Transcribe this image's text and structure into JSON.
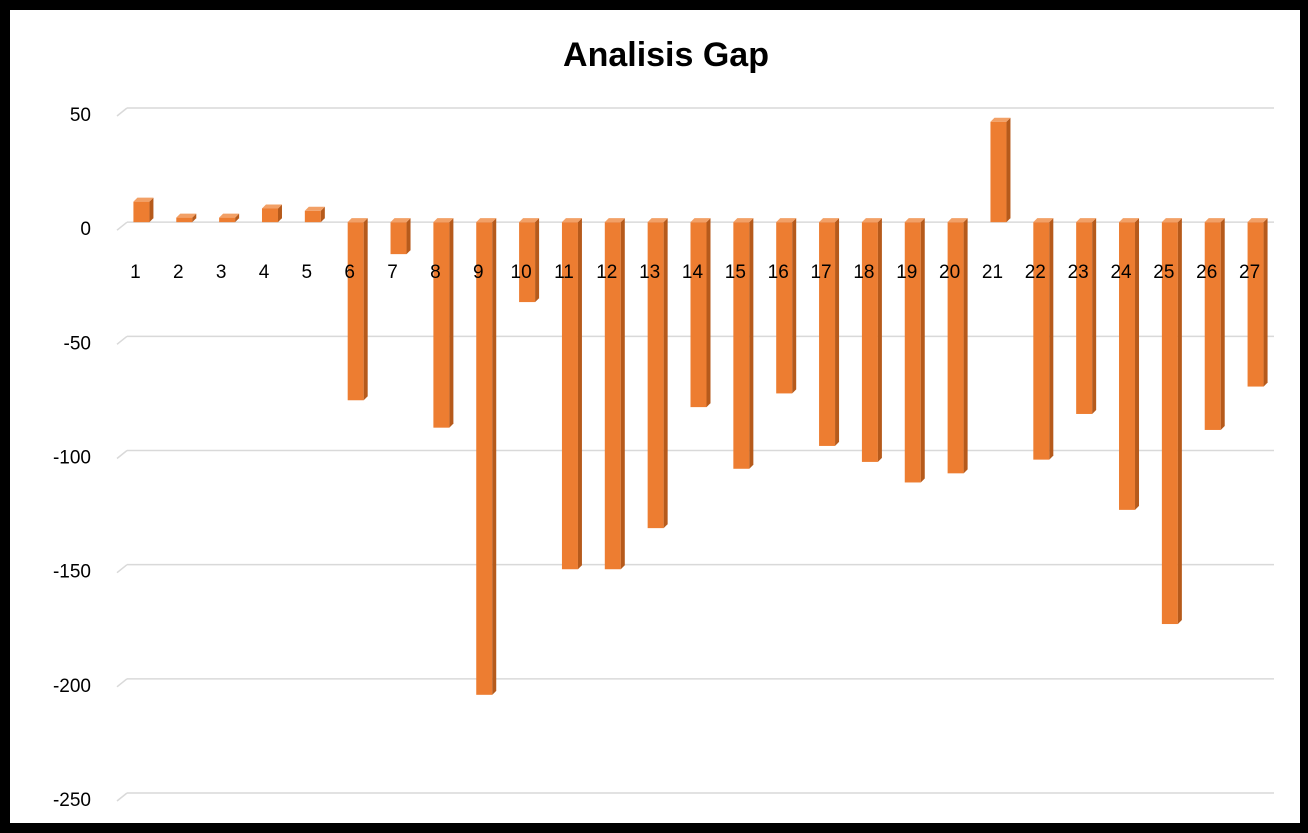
{
  "chart_data": {
    "type": "bar",
    "title": "Analisis Gap",
    "xlabel": "",
    "ylabel": "",
    "categories": [
      "1",
      "2",
      "3",
      "4",
      "5",
      "6",
      "7",
      "8",
      "9",
      "10",
      "11",
      "12",
      "13",
      "14",
      "15",
      "16",
      "17",
      "18",
      "19",
      "20",
      "21",
      "22",
      "23",
      "24",
      "25",
      "26",
      "27"
    ],
    "values": [
      9,
      2,
      2,
      6,
      5,
      -78,
      -14,
      -90,
      -207,
      -35,
      -152,
      -152,
      -134,
      -81,
      -108,
      -75,
      -98,
      -105,
      -114,
      -110,
      44,
      -104,
      -84,
      -126,
      -176,
      -91,
      -72
    ],
    "ylim": [
      -250,
      50
    ],
    "yticks": [
      50,
      0,
      -50,
      -100,
      -150,
      -200,
      -250
    ],
    "grid": true,
    "legend": "none",
    "bar_style": "3d",
    "colors": {
      "bar_front": "#ED7D31",
      "bar_side": "#B65A1B",
      "bar_top": "#F2A066",
      "grid": "#D9D9D9",
      "frame": "#000000"
    }
  }
}
